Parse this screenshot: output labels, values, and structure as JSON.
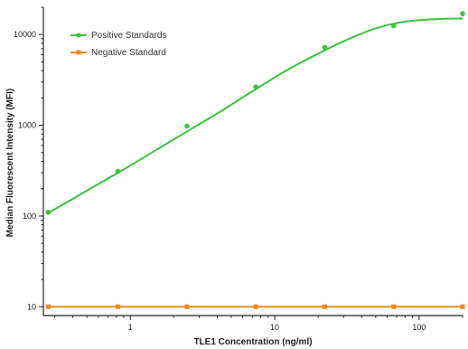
{
  "chart_data": {
    "type": "scatter",
    "xlabel": "TLE1 Concentration (ng/ml)",
    "ylabel": "Median Fluorescent Intensity (MFI)",
    "x_scale": "log",
    "y_scale": "log",
    "xlim": [
      0.25,
      200
    ],
    "ylim": [
      8,
      20000
    ],
    "x_ticks": [
      {
        "value": 1,
        "label": "1"
      },
      {
        "value": 10,
        "label": "10"
      },
      {
        "value": 100,
        "label": "100"
      }
    ],
    "y_ticks": [
      {
        "value": 10,
        "label": "10"
      },
      {
        "value": 100,
        "label": "100"
      },
      {
        "value": 1000,
        "label": "1000"
      },
      {
        "value": 10000,
        "label": "10000"
      }
    ],
    "legend_position": "top-left",
    "grid": false,
    "series": [
      {
        "name": "Positive Standards",
        "color": "#3cc43c",
        "marker": "circle",
        "fit": "sigmoidal curve",
        "points": [
          {
            "x": 0.27,
            "y": 110
          },
          {
            "x": 0.82,
            "y": 310
          },
          {
            "x": 2.47,
            "y": 980
          },
          {
            "x": 7.4,
            "y": 2650
          },
          {
            "x": 22.2,
            "y": 7200
          },
          {
            "x": 66.7,
            "y": 12500
          },
          {
            "x": 200,
            "y": 17000
          }
        ],
        "curve": [
          {
            "x": 0.27,
            "y": 108
          },
          {
            "x": 0.5,
            "y": 190
          },
          {
            "x": 1,
            "y": 360
          },
          {
            "x": 2,
            "y": 700
          },
          {
            "x": 4,
            "y": 1350
          },
          {
            "x": 7.4,
            "y": 2500
          },
          {
            "x": 12,
            "y": 4000
          },
          {
            "x": 22.2,
            "y": 6700
          },
          {
            "x": 35,
            "y": 9400
          },
          {
            "x": 50,
            "y": 11700
          },
          {
            "x": 70,
            "y": 13400
          },
          {
            "x": 100,
            "y": 14400
          },
          {
            "x": 150,
            "y": 14900
          },
          {
            "x": 200,
            "y": 15000
          }
        ]
      },
      {
        "name": "Negative Standard",
        "color": "#f08a24",
        "marker": "square",
        "points": [
          {
            "x": 0.27,
            "y": 10
          },
          {
            "x": 0.82,
            "y": 10
          },
          {
            "x": 2.47,
            "y": 10
          },
          {
            "x": 7.4,
            "y": 10
          },
          {
            "x": 22.2,
            "y": 10
          },
          {
            "x": 66.7,
            "y": 10
          },
          {
            "x": 200,
            "y": 10
          }
        ]
      }
    ]
  }
}
